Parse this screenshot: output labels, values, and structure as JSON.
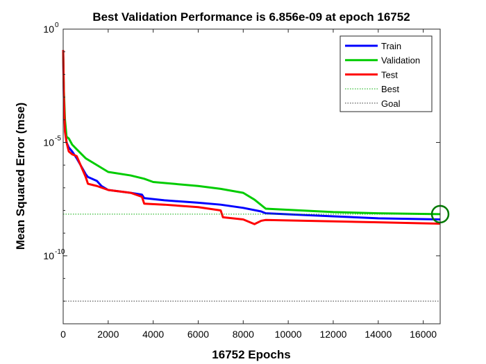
{
  "chart_data": {
    "type": "line",
    "title": "Best Validation Performance is 6.856e-09 at epoch 16752",
    "xlabel": "16752 Epochs",
    "ylabel": "Mean Squared Error  (mse)",
    "xlim": [
      0,
      16752
    ],
    "ylim": [
      1e-13,
      1
    ],
    "yscale": "log",
    "xticks": [
      0,
      2000,
      4000,
      6000,
      8000,
      10000,
      12000,
      14000,
      16000
    ],
    "yticks": [
      {
        "base": "10",
        "exp": "0",
        "value": 1
      },
      {
        "base": "10",
        "exp": "-5",
        "value": 1e-05
      },
      {
        "base": "10",
        "exp": "-10",
        "value": 1e-10
      }
    ],
    "grid": false,
    "legend_position": "top-right",
    "series": [
      {
        "name": "Train",
        "color": "#0000ff",
        "points": [
          [
            0,
            0.08
          ],
          [
            30,
            0.001
          ],
          [
            80,
            5e-05
          ],
          [
            150,
            1e-05
          ],
          [
            250,
            6e-06
          ],
          [
            400,
            4e-06
          ],
          [
            600,
            2e-06
          ],
          [
            1000,
            4e-07
          ],
          [
            1100,
            3e-07
          ],
          [
            1500,
            2e-07
          ],
          [
            1700,
            1.2e-07
          ],
          [
            2000,
            8e-08
          ],
          [
            3000,
            6e-08
          ],
          [
            3500,
            5e-08
          ],
          [
            3600,
            3.5e-08
          ],
          [
            4500,
            2.8e-08
          ],
          [
            6000,
            2.2e-08
          ],
          [
            7000,
            1.8e-08
          ],
          [
            8000,
            1.3e-08
          ],
          [
            8800,
            9e-09
          ],
          [
            9000,
            7.5e-09
          ],
          [
            12000,
            5.5e-09
          ],
          [
            14000,
            4.5e-09
          ],
          [
            16752,
            4e-09
          ]
        ]
      },
      {
        "name": "Validation",
        "color": "#00cc00",
        "points": [
          [
            0,
            0.1
          ],
          [
            30,
            0.002
          ],
          [
            80,
            0.0001
          ],
          [
            150,
            1.8e-05
          ],
          [
            250,
            1.5e-05
          ],
          [
            400,
            8e-06
          ],
          [
            600,
            5e-06
          ],
          [
            1000,
            2e-06
          ],
          [
            1500,
            1e-06
          ],
          [
            2000,
            5e-07
          ],
          [
            3000,
            3.5e-07
          ],
          [
            3600,
            2.5e-07
          ],
          [
            4000,
            1.8e-07
          ],
          [
            6000,
            1.2e-07
          ],
          [
            7000,
            9e-08
          ],
          [
            8000,
            6e-08
          ],
          [
            8500,
            3e-08
          ],
          [
            9000,
            1.2e-08
          ],
          [
            12000,
            8.5e-09
          ],
          [
            14000,
            7.5e-09
          ],
          [
            16752,
            6.856e-09
          ]
        ]
      },
      {
        "name": "Test",
        "color": "#ff0000",
        "points": [
          [
            0,
            0.12
          ],
          [
            30,
            0.001
          ],
          [
            80,
            3e-05
          ],
          [
            150,
            1e-05
          ],
          [
            250,
            4e-06
          ],
          [
            400,
            3e-06
          ],
          [
            600,
            2.5e-06
          ],
          [
            1000,
            3e-07
          ],
          [
            1100,
            1.5e-07
          ],
          [
            1500,
            1.2e-07
          ],
          [
            2000,
            8e-08
          ],
          [
            3000,
            6e-08
          ],
          [
            3500,
            4e-08
          ],
          [
            3600,
            2e-08
          ],
          [
            4500,
            1.8e-08
          ],
          [
            6000,
            1.4e-08
          ],
          [
            7000,
            1e-08
          ],
          [
            7100,
            5e-09
          ],
          [
            8000,
            4e-09
          ],
          [
            8500,
            2.5e-09
          ],
          [
            8800,
            3.5e-09
          ],
          [
            9000,
            3.8e-09
          ],
          [
            12000,
            3.3e-09
          ],
          [
            14000,
            3e-09
          ],
          [
            16752,
            2.6e-09
          ]
        ]
      }
    ],
    "best": {
      "name": "Best",
      "epoch": 16752,
      "value": 6.856e-09,
      "color": "#00aa00"
    },
    "goal": {
      "name": "Goal",
      "value": 1e-12,
      "color": "#333333"
    }
  }
}
